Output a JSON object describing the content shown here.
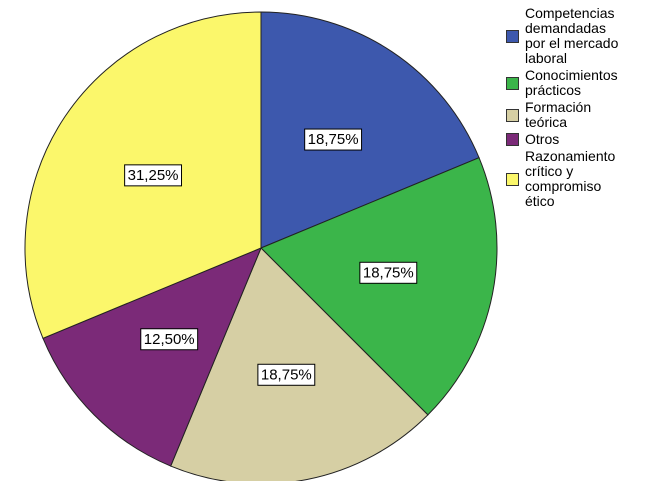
{
  "chart_data": {
    "type": "pie",
    "categories": [
      "Competencias demandadas por el mercado laboral",
      "Conocimientos prácticos",
      "Formación teórica",
      "Otros",
      "Razonamiento crítico y compromiso ético"
    ],
    "values": [
      18.75,
      18.75,
      18.75,
      12.5,
      31.25
    ],
    "value_labels": [
      "18,75%",
      "18,75%",
      "18,75%",
      "12,50%",
      "31,25%"
    ],
    "colors": [
      "#3d58ad",
      "#3bb54a",
      "#d6cfa4",
      "#7b2a78",
      "#fbf76b"
    ],
    "legend": "right"
  }
}
